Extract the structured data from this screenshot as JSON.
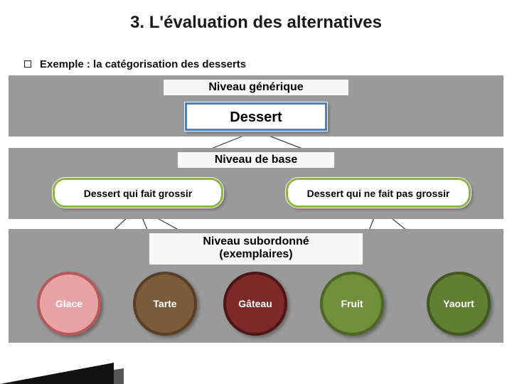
{
  "slide": {
    "title": "3. L'évaluation des alternatives",
    "subtitle": "Exemple : la catégorisation des desserts",
    "background_color": "#ffffff",
    "panel_color": "#9a9a9a",
    "title_fontsize": 24,
    "subtitle_fontsize": 15
  },
  "levels": {
    "generic": {
      "label": "Niveau générique"
    },
    "base": {
      "label": "Niveau de base"
    },
    "subordinate": {
      "label": "Niveau subordonné\n(exemplaires)"
    }
  },
  "root": {
    "text": "Dessert",
    "border_color": "#4f81bd",
    "bg_color": "#ffffff"
  },
  "base_nodes": {
    "left": {
      "text": "Dessert qui fait grossir",
      "border_color": "#8bb53e"
    },
    "right": {
      "text": "Dessert qui ne fait pas grossir",
      "border_color": "#8bb53e"
    }
  },
  "leaf_nodes": [
    {
      "text": "Glace",
      "fill": "#e8a4a4",
      "border": "#b85a5a"
    },
    {
      "text": "Tarte",
      "fill": "#7a5b3a",
      "border": "#5a3f25"
    },
    {
      "text": "Gâteau",
      "fill": "#7d2a28",
      "border": "#4d1614"
    },
    {
      "text": "Fruit",
      "fill": "#6f8f3a",
      "border": "#4e6626"
    },
    {
      "text": "Yaourt",
      "fill": "#5f7f32",
      "border": "#41581f"
    }
  ],
  "edges": [
    {
      "from": "root",
      "to": "base.left"
    },
    {
      "from": "root",
      "to": "base.right"
    },
    {
      "from": "base.left",
      "to": "leaf.0"
    },
    {
      "from": "base.left",
      "to": "leaf.1"
    },
    {
      "from": "base.left",
      "to": "leaf.2"
    },
    {
      "from": "base.right",
      "to": "leaf.3"
    },
    {
      "from": "base.right",
      "to": "leaf.4"
    }
  ],
  "connector_style": {
    "stroke": "#3f3f3f",
    "stroke_width": 1.2
  }
}
